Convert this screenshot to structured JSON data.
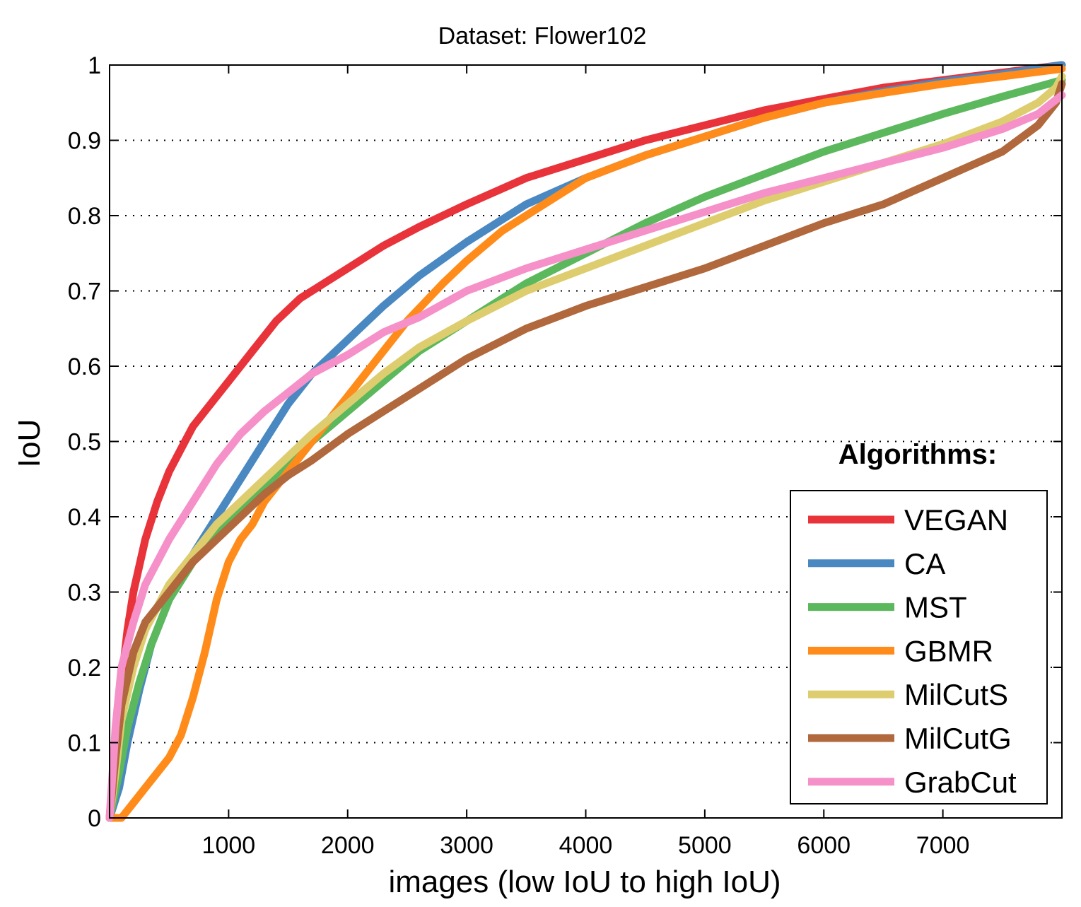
{
  "chart_data": {
    "type": "line",
    "title": "Dataset: Flower102",
    "xlabel": "images (low IoU to high IoU)",
    "ylabel": "IoU",
    "xlim": [
      0,
      8000
    ],
    "ylim": [
      0,
      1
    ],
    "xticks": [
      1000,
      2000,
      3000,
      4000,
      5000,
      6000,
      7000
    ],
    "yticks": [
      0,
      0.1,
      0.2,
      0.3,
      0.4,
      0.5,
      0.6,
      0.7,
      0.8,
      0.9,
      1
    ],
    "ytick_labels": [
      "0",
      "0.1",
      "0.2",
      "0.3",
      "0.4",
      "0.5",
      "0.6",
      "0.7",
      "0.8",
      "0.9",
      "1"
    ],
    "grid": "horizontal-dotted",
    "legend_title": "Algorithms:",
    "legend_position": "bottom-right",
    "series": [
      {
        "name": "VEGAN",
        "color": "#e8333b",
        "x": [
          0,
          50,
          100,
          150,
          200,
          300,
          400,
          500,
          600,
          700,
          800,
          900,
          1000,
          1200,
          1400,
          1600,
          1800,
          2000,
          2300,
          2600,
          3000,
          3500,
          4000,
          4500,
          5000,
          5500,
          6000,
          6500,
          7000,
          7500,
          8000
        ],
        "y": [
          0,
          0.1,
          0.18,
          0.25,
          0.3,
          0.37,
          0.42,
          0.46,
          0.49,
          0.52,
          0.54,
          0.56,
          0.58,
          0.62,
          0.66,
          0.69,
          0.71,
          0.73,
          0.76,
          0.785,
          0.815,
          0.85,
          0.875,
          0.9,
          0.92,
          0.94,
          0.955,
          0.97,
          0.98,
          0.99,
          1.0
        ]
      },
      {
        "name": "CA",
        "color": "#4a88c2",
        "x": [
          0,
          80,
          150,
          250,
          350,
          500,
          700,
          900,
          1100,
          1300,
          1500,
          1700,
          2000,
          2300,
          2600,
          3000,
          3500,
          4000,
          4500,
          5000,
          5500,
          6000,
          6500,
          7000,
          7500,
          8000
        ],
        "y": [
          0,
          0.04,
          0.1,
          0.17,
          0.23,
          0.29,
          0.35,
          0.4,
          0.45,
          0.5,
          0.55,
          0.59,
          0.635,
          0.68,
          0.72,
          0.765,
          0.815,
          0.85,
          0.88,
          0.905,
          0.93,
          0.95,
          0.965,
          0.978,
          0.988,
          1.0
        ]
      },
      {
        "name": "MST",
        "color": "#5cb85c",
        "x": [
          0,
          80,
          150,
          250,
          350,
          500,
          700,
          900,
          1100,
          1300,
          1500,
          1700,
          2000,
          2300,
          2600,
          3000,
          3500,
          4000,
          4500,
          5000,
          5500,
          6000,
          6500,
          7000,
          7500,
          8000
        ],
        "y": [
          0,
          0.06,
          0.12,
          0.18,
          0.23,
          0.29,
          0.34,
          0.38,
          0.41,
          0.44,
          0.47,
          0.5,
          0.54,
          0.58,
          0.62,
          0.66,
          0.71,
          0.75,
          0.79,
          0.825,
          0.855,
          0.885,
          0.91,
          0.935,
          0.958,
          0.98
        ]
      },
      {
        "name": "GBMR",
        "color": "#ff8c1a",
        "x": [
          0,
          100,
          200,
          300,
          400,
          500,
          600,
          700,
          800,
          900,
          1000,
          1100,
          1200,
          1300,
          1400,
          1600,
          1800,
          2000,
          2200,
          2500,
          2800,
          3000,
          3300,
          3600,
          4000,
          4500,
          5000,
          5500,
          6000,
          6500,
          7000,
          7500,
          8000
        ],
        "y": [
          0,
          0.0,
          0.02,
          0.04,
          0.06,
          0.08,
          0.11,
          0.16,
          0.22,
          0.29,
          0.34,
          0.37,
          0.39,
          0.42,
          0.44,
          0.48,
          0.52,
          0.56,
          0.6,
          0.66,
          0.71,
          0.74,
          0.78,
          0.81,
          0.85,
          0.88,
          0.905,
          0.93,
          0.95,
          0.963,
          0.975,
          0.985,
          0.995
        ]
      },
      {
        "name": "MilCutS",
        "color": "#ddcd6f",
        "x": [
          0,
          50,
          100,
          200,
          300,
          400,
          500,
          700,
          900,
          1100,
          1300,
          1500,
          1700,
          2000,
          2300,
          2600,
          3000,
          3500,
          4000,
          4500,
          5000,
          5500,
          6000,
          6500,
          7000,
          7500,
          7800,
          7950,
          8000
        ],
        "y": [
          0,
          0.06,
          0.13,
          0.2,
          0.25,
          0.28,
          0.31,
          0.35,
          0.39,
          0.42,
          0.45,
          0.48,
          0.51,
          0.55,
          0.59,
          0.625,
          0.66,
          0.7,
          0.73,
          0.76,
          0.79,
          0.82,
          0.845,
          0.87,
          0.895,
          0.925,
          0.95,
          0.97,
          0.985
        ]
      },
      {
        "name": "MilCutG",
        "color": "#b0683c",
        "x": [
          0,
          50,
          100,
          200,
          300,
          400,
          500,
          700,
          900,
          1100,
          1300,
          1500,
          1700,
          2000,
          2300,
          2600,
          3000,
          3500,
          4000,
          4500,
          5000,
          5500,
          6000,
          6500,
          7000,
          7500,
          7800,
          7950,
          8000
        ],
        "y": [
          0,
          0.08,
          0.15,
          0.22,
          0.26,
          0.28,
          0.3,
          0.34,
          0.37,
          0.4,
          0.43,
          0.455,
          0.475,
          0.51,
          0.54,
          0.57,
          0.61,
          0.65,
          0.68,
          0.705,
          0.73,
          0.76,
          0.79,
          0.815,
          0.85,
          0.885,
          0.92,
          0.95,
          0.975
        ]
      },
      {
        "name": "GrabCut",
        "color": "#f590c8",
        "x": [
          0,
          50,
          100,
          200,
          300,
          400,
          500,
          700,
          900,
          1100,
          1300,
          1500,
          1700,
          2000,
          2300,
          2600,
          3000,
          3500,
          4000,
          4500,
          5000,
          5500,
          6000,
          6500,
          7000,
          7500,
          7800,
          8000
        ],
        "y": [
          0,
          0.12,
          0.2,
          0.26,
          0.31,
          0.34,
          0.37,
          0.42,
          0.47,
          0.51,
          0.54,
          0.565,
          0.59,
          0.615,
          0.645,
          0.665,
          0.7,
          0.73,
          0.755,
          0.78,
          0.805,
          0.83,
          0.85,
          0.87,
          0.89,
          0.915,
          0.935,
          0.96
        ]
      }
    ]
  }
}
